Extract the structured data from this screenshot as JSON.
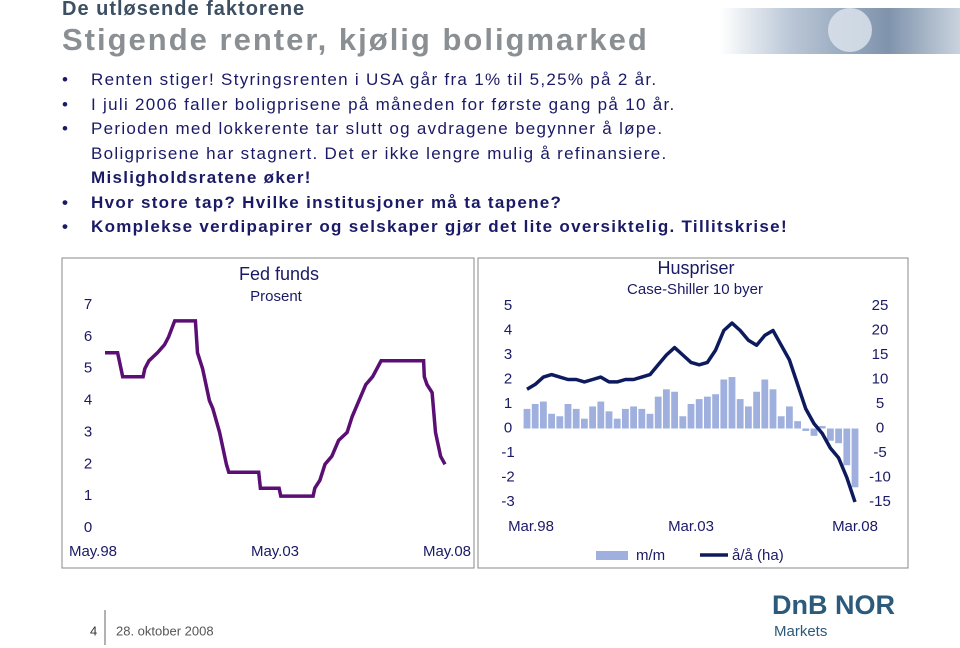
{
  "header": {
    "kicker": "De utløsende faktorene",
    "title": "Stigende renter, kjølig boligmarked"
  },
  "bullets": [
    {
      "text": "Renten stiger! Styringsrenten i USA går fra 1% til 5,25% på 2 år.",
      "bullet": true,
      "bold": false
    },
    {
      "text": "I juli 2006 faller boligprisene på måneden for første gang på 10 år.",
      "bullet": true,
      "bold": false
    },
    {
      "text": "Perioden med lokkerente tar slutt og avdragene begynner å løpe.",
      "bullet": true,
      "bold": false
    },
    {
      "text": "Boligprisene har stagnert. Det er ikke lengre mulig å refinansiere.",
      "bullet": false,
      "bold": false
    },
    {
      "text": "Misligholdsratene øker!",
      "bullet": false,
      "bold": true
    },
    {
      "text": "Hvor store tap? Hvilke institusjoner må ta tapene?",
      "bullet": true,
      "bold": true
    },
    {
      "text": "Komplekse verdipapirer og selskaper gjør det lite oversiktelig. Tillitskrise!",
      "bullet": true,
      "bold": true
    }
  ],
  "chart_data": [
    {
      "type": "line",
      "title": "Fed funds",
      "subtitle": "Prosent",
      "x": [
        1998.33,
        1998.7,
        1998.75,
        1998.8,
        1998.85,
        1999.45,
        1999.5,
        1999.62,
        1999.87,
        2000.08,
        2000.2,
        2000.38,
        2000.99,
        2001.05,
        2001.2,
        2001.3,
        2001.4,
        2001.5,
        2001.7,
        2001.8,
        2001.9,
        2001.97,
        2002.85,
        2002.9,
        2003.45,
        2003.5,
        2004.45,
        2004.5,
        2004.65,
        2004.8,
        2005.0,
        2005.2,
        2005.45,
        2005.6,
        2005.8,
        2006.0,
        2006.2,
        2006.45,
        2007.7,
        2007.72,
        2007.8,
        2007.95,
        2008.05,
        2008.2,
        2008.33
      ],
      "series": [
        {
          "color": "#5b0f75",
          "values": [
            5.5,
            5.5,
            5.25,
            5.0,
            4.75,
            4.75,
            5.0,
            5.25,
            5.5,
            5.75,
            6.0,
            6.5,
            6.5,
            5.5,
            5.0,
            4.5,
            4.0,
            3.75,
            3.0,
            2.5,
            2.0,
            1.75,
            1.75,
            1.25,
            1.25,
            1.0,
            1.0,
            1.25,
            1.5,
            2.0,
            2.25,
            2.75,
            3.0,
            3.5,
            4.0,
            4.5,
            4.75,
            5.25,
            5.25,
            4.75,
            4.5,
            4.25,
            3.0,
            2.25,
            2.0
          ]
        }
      ],
      "xlim": [
        1998.33,
        2008.33
      ],
      "xticks": [
        {
          "value": 1998.33,
          "label": "May.98"
        },
        {
          "value": 2003.33,
          "label": "May.03"
        },
        {
          "value": 2008.33,
          "label": "May.08"
        }
      ],
      "ylim": [
        0,
        7
      ],
      "yticks": [
        0,
        1,
        2,
        3,
        4,
        5,
        6,
        7
      ]
    },
    {
      "type": "bar_line",
      "title": "Huspriser",
      "subtitle": "Case-Shiller 10 byer",
      "x": [
        1998.17,
        1998.42,
        1998.67,
        1998.92,
        1999.17,
        1999.42,
        1999.67,
        1999.92,
        2000.17,
        2000.42,
        2000.67,
        2000.92,
        2001.17,
        2001.42,
        2001.67,
        2001.92,
        2002.17,
        2002.42,
        2002.67,
        2002.92,
        2003.17,
        2003.42,
        2003.67,
        2003.92,
        2004.17,
        2004.42,
        2004.67,
        2004.92,
        2005.17,
        2005.42,
        2005.67,
        2005.92,
        2006.17,
        2006.42,
        2006.67,
        2006.92,
        2007.17,
        2007.42,
        2007.67,
        2007.92,
        2008.17
      ],
      "series": [
        {
          "name": "m/m",
          "kind": "bar",
          "color": "#9fb0de",
          "values": [
            0.8,
            1.0,
            1.1,
            0.6,
            0.5,
            1.0,
            0.8,
            0.4,
            0.9,
            1.1,
            0.7,
            0.4,
            0.8,
            0.9,
            0.8,
            0.6,
            1.3,
            1.6,
            1.5,
            0.5,
            1.0,
            1.2,
            1.3,
            1.4,
            2.0,
            2.1,
            1.2,
            0.9,
            1.5,
            2.0,
            1.6,
            0.5,
            0.9,
            0.3,
            -0.1,
            -0.3,
            0.1,
            -0.5,
            -0.6,
            -1.5,
            -2.4
          ]
        },
        {
          "name": "å/å (ha)",
          "kind": "line",
          "axis": "y2",
          "color": "#0d1b5e",
          "values": [
            8,
            9,
            10.5,
            11,
            10.5,
            10,
            10,
            9.5,
            10,
            10.5,
            9.5,
            9.5,
            10,
            10,
            10.5,
            11,
            13,
            15,
            16.5,
            15,
            13.5,
            13,
            13.5,
            16,
            20,
            21.5,
            20,
            18,
            17,
            19,
            20,
            17,
            14,
            9,
            4,
            1,
            -1,
            -4,
            -6,
            -10,
            -15
          ]
        }
      ],
      "xlim": [
        1998.17,
        2008.17
      ],
      "xticks": [
        {
          "value": 1998.17,
          "label": "Mar.98"
        },
        {
          "value": 2003.17,
          "label": "Mar.03"
        },
        {
          "value": 2008.17,
          "label": "Mar.08"
        }
      ],
      "ylim": [
        -3,
        5
      ],
      "yticks": [
        -3,
        -2,
        -1,
        0,
        1,
        2,
        3,
        4,
        5
      ],
      "y2lim": [
        -15,
        25
      ],
      "y2ticks": [
        -15,
        -10,
        -5,
        0,
        5,
        10,
        15,
        20,
        25
      ]
    }
  ],
  "footer": {
    "page": "4",
    "date": "28. oktober 2008",
    "brand": "DnB NOR",
    "unit": "Markets"
  }
}
